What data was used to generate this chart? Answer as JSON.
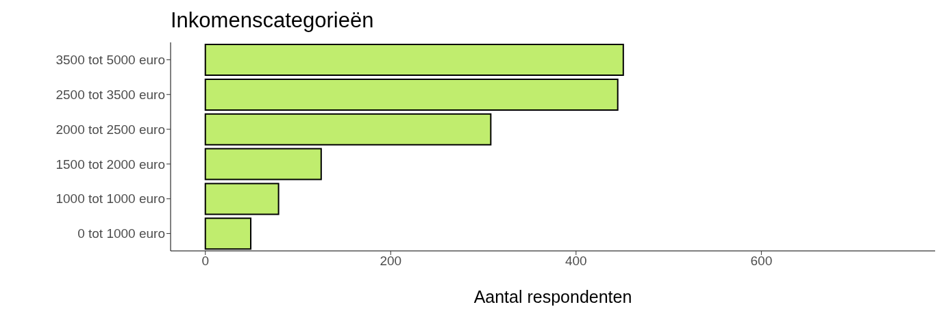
{
  "chart_data": {
    "type": "bar",
    "orientation": "horizontal",
    "title": "Inkomenscategorieën",
    "xlabel": "Aantal respondenten",
    "categories": [
      "3500 tot 5000 euro",
      "2500 tot 3500 euro",
      "2000 tot 2500 euro",
      "1500 tot 2000 euro",
      "1000 tot 1000 euro",
      "0 tot 1000 euro"
    ],
    "values": [
      451,
      445,
      308,
      125,
      79,
      49
    ],
    "color": "#c0ed6e",
    "xlim": [
      -37.5,
      787.5
    ],
    "xticks": [
      0,
      200,
      400,
      600
    ],
    "grid": false,
    "legend": false
  }
}
